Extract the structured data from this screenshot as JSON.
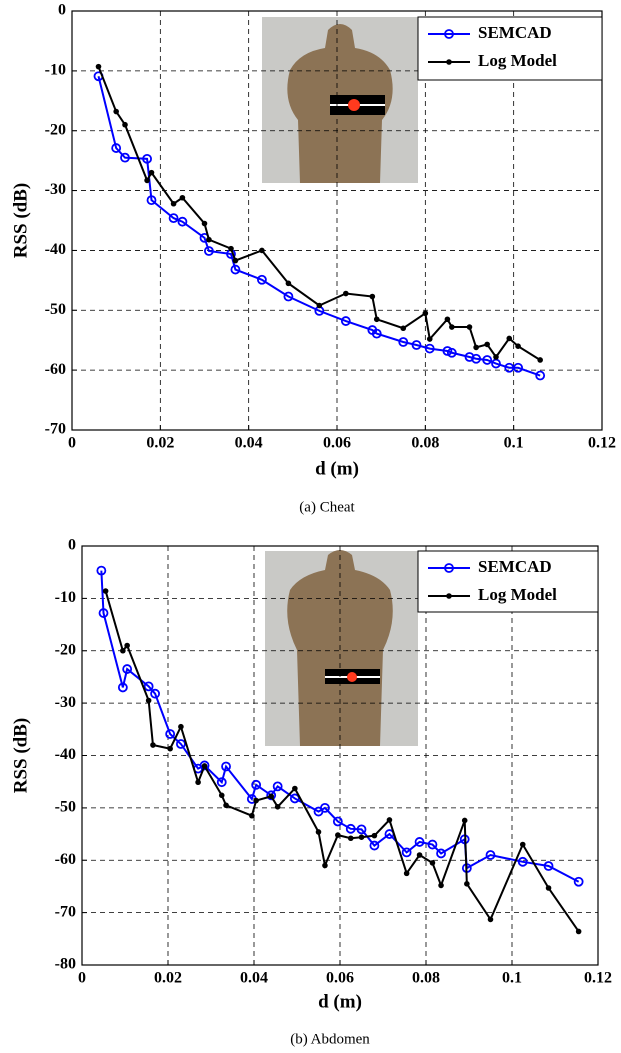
{
  "chart_data": [
    {
      "type": "line",
      "xlabel": "d (m)",
      "ylabel": "RSS (dB)",
      "caption": "(a) Cheat",
      "xlim": [
        0,
        0.12
      ],
      "xticks": [
        0,
        0.02,
        0.04,
        0.06,
        0.08,
        0.1,
        0.12
      ],
      "ylim": [
        -70,
        0
      ],
      "yticks": [
        0,
        -10,
        -20,
        -30,
        -40,
        -50,
        -60,
        -70
      ],
      "grid": true,
      "legend": "upper right",
      "series": [
        {
          "name": "SEMCAD",
          "color": "#0000ff",
          "marker": "circle",
          "x": [
            0.006,
            0.01,
            0.012,
            0.017,
            0.018,
            0.023,
            0.025,
            0.03,
            0.031,
            0.036,
            0.037,
            0.043,
            0.049,
            0.056,
            0.062,
            0.068,
            0.069,
            0.075,
            0.078,
            0.081,
            0.085,
            0.086,
            0.09,
            0.0915,
            0.094,
            0.096,
            0.099,
            0.101,
            0.106
          ],
          "values": [
            -10.9,
            -22.9,
            -24.5,
            -24.7,
            -31.6,
            -34.6,
            -35.2,
            -37.9,
            -40.1,
            -40.6,
            -43.2,
            -44.9,
            -47.7,
            -50.1,
            -51.8,
            -53.3,
            -53.9,
            -55.3,
            -55.8,
            -56.4,
            -56.8,
            -57.1,
            -57.8,
            -58.1,
            -58.3,
            -58.9,
            -59.6,
            -59.6,
            -60.9
          ]
        },
        {
          "name": "Log Model",
          "color": "#000000",
          "marker": "dot",
          "x": [
            0.006,
            0.01,
            0.012,
            0.017,
            0.018,
            0.023,
            0.025,
            0.03,
            0.031,
            0.036,
            0.037,
            0.043,
            0.049,
            0.056,
            0.062,
            0.068,
            0.069,
            0.075,
            0.08,
            0.081,
            0.085,
            0.086,
            0.09,
            0.0915,
            0.094,
            0.096,
            0.099,
            0.101,
            0.106
          ],
          "values": [
            -9.3,
            -16.8,
            -19,
            -28.3,
            -27,
            -32.2,
            -31.2,
            -35.5,
            -38.2,
            -39.7,
            -41.7,
            -40,
            -45.5,
            -49.2,
            -47.2,
            -47.7,
            -51.5,
            -53,
            -50.5,
            -54.8,
            -51.5,
            -52.8,
            -52.8,
            -56.2,
            -55.7,
            -57.8,
            -54.7,
            -56,
            -58.3
          ]
        }
      ]
    },
    {
      "type": "line",
      "xlabel": "d (m)",
      "ylabel": "RSS (dB)",
      "caption": "(b) Abdomen",
      "xlim": [
        0,
        0.12
      ],
      "xticks": [
        0,
        0.02,
        0.04,
        0.06,
        0.08,
        0.1,
        0.12
      ],
      "ylim": [
        -80,
        0
      ],
      "yticks": [
        0,
        -10,
        -20,
        -30,
        -40,
        -50,
        -60,
        -70,
        -80
      ],
      "grid": true,
      "legend": "upper right",
      "series": [
        {
          "name": "SEMCAD",
          "color": "#0000ff",
          "marker": "circle",
          "x": [
            0.0045,
            0.005,
            0.0095,
            0.0105,
            0.0155,
            0.017,
            0.0205,
            0.023,
            0.027,
            0.0285,
            0.0325,
            0.0335,
            0.0395,
            0.0405,
            0.044,
            0.0455,
            0.0495,
            0.055,
            0.0565,
            0.0595,
            0.0625,
            0.065,
            0.068,
            0.0715,
            0.0755,
            0.0785,
            0.0815,
            0.0835,
            0.089,
            0.0895,
            0.095,
            0.1025,
            0.1085,
            0.1155
          ],
          "values": [
            -4.7,
            -12.8,
            -27,
            -23.5,
            -26.8,
            -28.2,
            -35.9,
            -37.8,
            -42.5,
            -41.9,
            -45.1,
            -42.1,
            -48.3,
            -45.6,
            -47.6,
            -45.9,
            -48.2,
            -50.7,
            -50,
            -52.6,
            -54,
            -54.1,
            -57.2,
            -55,
            -58.5,
            -56.5,
            -57,
            -58.7,
            -56,
            -61.5,
            -59,
            -60.3,
            -61.1,
            -64.1
          ]
        },
        {
          "name": "Log Model",
          "color": "#000000",
          "marker": "dot",
          "x": [
            0.0055,
            0.0095,
            0.0105,
            0.0155,
            0.0165,
            0.0205,
            0.023,
            0.027,
            0.0285,
            0.0325,
            0.0335,
            0.0395,
            0.0405,
            0.044,
            0.0455,
            0.0495,
            0.055,
            0.0565,
            0.0595,
            0.0625,
            0.065,
            0.068,
            0.0715,
            0.0755,
            0.0785,
            0.0815,
            0.0835,
            0.089,
            0.0895,
            0.095,
            0.1025,
            0.1085,
            0.1155
          ],
          "values": [
            -8.6,
            -20,
            -19,
            -29.5,
            -38,
            -38.7,
            -34.5,
            -45.1,
            -42,
            -47.6,
            -49.5,
            -51.5,
            -48.6,
            -47.8,
            -49.8,
            -46.3,
            -54.6,
            -61,
            -55.2,
            -55.8,
            -55.6,
            -55.3,
            -52.3,
            -62.5,
            -59,
            -60.5,
            -64.8,
            -52.4,
            -64.5,
            -71.3,
            -57,
            -65.3,
            -73.6
          ]
        }
      ]
    }
  ]
}
